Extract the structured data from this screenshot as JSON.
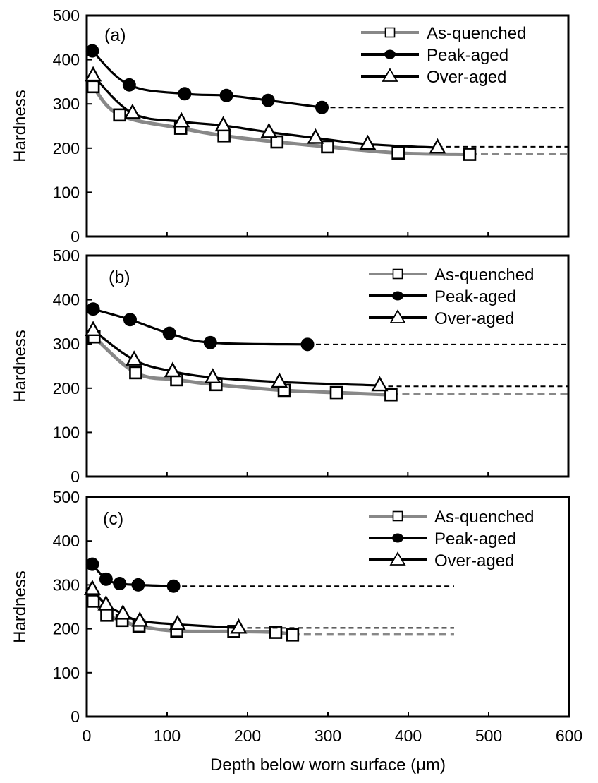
{
  "chart_data": [
    {
      "type": "line",
      "panel_label": "(a)",
      "xlabel": "",
      "ylabel": "Hardness",
      "xlim": [
        0,
        600
      ],
      "ylim": [
        0,
        500
      ],
      "yticks": [
        0,
        100,
        200,
        300,
        400,
        500
      ],
      "xticks": [
        0,
        100,
        200,
        300,
        400,
        500,
        600
      ],
      "show_xtick_labels": false,
      "grid": false,
      "legend_position": "top-right",
      "series": [
        {
          "name": "As-quenched",
          "marker": "square-open",
          "color": "#888888",
          "x": [
            8,
            41,
            117,
            171,
            237,
            300,
            388,
            477
          ],
          "y": [
            339,
            275,
            245,
            228,
            214,
            203,
            189,
            186
          ],
          "plateau": {
            "y": 187,
            "to_x": 600
          }
        },
        {
          "name": "Peak-aged",
          "marker": "circle-filled",
          "color": "#000000",
          "x": [
            7,
            53,
            122,
            174,
            226,
            293
          ],
          "y": [
            420,
            343,
            323,
            319,
            308,
            292
          ],
          "plateau": {
            "y": 292,
            "to_x": 600
          }
        },
        {
          "name": "Over-aged",
          "marker": "triangle-open",
          "color": "#000000",
          "x": [
            8,
            57,
            118,
            170,
            227,
            285,
            350,
            437
          ],
          "y": [
            364,
            279,
            260,
            251,
            236,
            223,
            209,
            201
          ],
          "plateau": {
            "y": 203,
            "to_x": 600
          }
        }
      ]
    },
    {
      "type": "line",
      "panel_label": "(b)",
      "xlabel": "",
      "ylabel": "Hardness",
      "xlim": [
        0,
        600
      ],
      "ylim": [
        0,
        500
      ],
      "yticks": [
        0,
        100,
        200,
        300,
        400,
        500
      ],
      "xticks": [
        0,
        100,
        200,
        300,
        400,
        500,
        600
      ],
      "show_xtick_labels": false,
      "grid": false,
      "legend_position": "top-right",
      "series": [
        {
          "name": "As-quenched",
          "marker": "square-open",
          "color": "#888888",
          "x": [
            9,
            61,
            112,
            161,
            246,
            311,
            379
          ],
          "y": [
            316,
            235,
            219,
            208,
            195,
            190,
            185
          ],
          "plateau": {
            "y": 187,
            "to_x": 600
          }
        },
        {
          "name": "Peak-aged",
          "marker": "circle-filled",
          "color": "#000000",
          "x": [
            8,
            54,
            103,
            154,
            275
          ],
          "y": [
            379,
            355,
            324,
            303,
            299
          ],
          "plateau": {
            "y": 299,
            "to_x": 600
          }
        },
        {
          "name": "Over-aged",
          "marker": "triangle-open",
          "color": "#000000",
          "x": [
            8,
            59,
            107,
            157,
            240,
            365
          ],
          "y": [
            331,
            264,
            238,
            224,
            214,
            206
          ],
          "plateau": {
            "y": 204,
            "to_x": 600
          }
        }
      ]
    },
    {
      "type": "line",
      "panel_label": "(c)",
      "xlabel": "Depth below worn surface (μm)",
      "ylabel": "Hardness",
      "xlim": [
        0,
        600
      ],
      "ylim": [
        0,
        500
      ],
      "yticks": [
        0,
        100,
        200,
        300,
        400,
        500
      ],
      "xticks": [
        0,
        100,
        200,
        300,
        400,
        500,
        600
      ],
      "show_xtick_labels": true,
      "grid": false,
      "legend_position": "top-right",
      "series": [
        {
          "name": "As-quenched",
          "marker": "square-open",
          "color": "#888888",
          "x": [
            8,
            25,
            44,
            65,
            112,
            183,
            235,
            256
          ],
          "y": [
            263,
            231,
            219,
            206,
            195,
            194,
            192,
            186
          ],
          "plateau": {
            "y": 187,
            "to_x": 457
          }
        },
        {
          "name": "Peak-aged",
          "marker": "circle-filled",
          "color": "#000000",
          "x": [
            7,
            24,
            41,
            64,
            108
          ],
          "y": [
            347,
            313,
            303,
            300,
            297
          ],
          "plateau": {
            "y": 297,
            "to_x": 457
          }
        },
        {
          "name": "Over-aged",
          "marker": "triangle-open",
          "color": "#000000",
          "x": [
            7,
            24,
            45,
            66,
            113,
            189
          ],
          "y": [
            290,
            255,
            234,
            218,
            210,
            202
          ],
          "plateau": {
            "y": 202,
            "to_x": 457
          }
        }
      ]
    }
  ]
}
